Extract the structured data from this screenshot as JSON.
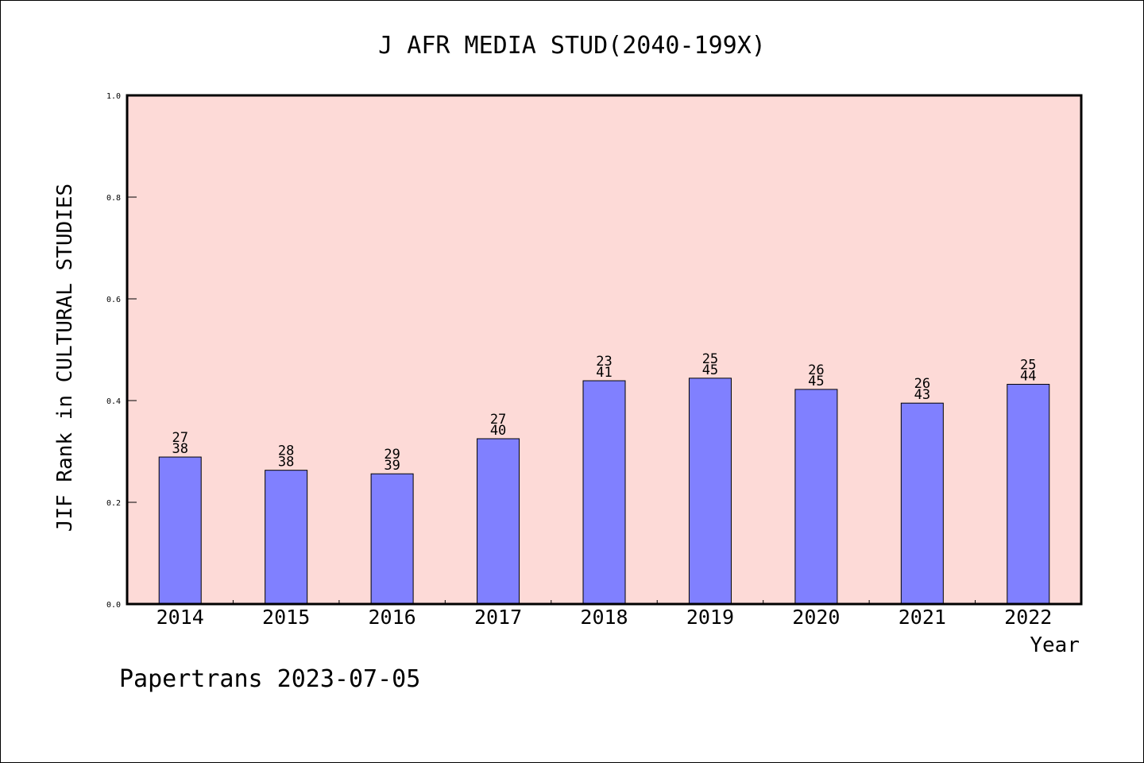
{
  "chart_data": {
    "type": "bar",
    "title": "J AFR MEDIA STUD(2040-199X)",
    "xlabel": "Year",
    "ylabel": "JIF Rank in CULTURAL STUDIES",
    "ylim": [
      0.0,
      1.0
    ],
    "yticks": [
      "0.0",
      "0.2",
      "0.4",
      "0.6",
      "0.8",
      "1.0"
    ],
    "categories": [
      "2014",
      "2015",
      "2016",
      "2017",
      "2018",
      "2019",
      "2020",
      "2021",
      "2022"
    ],
    "values": [
      0.289,
      0.263,
      0.256,
      0.325,
      0.439,
      0.444,
      0.422,
      0.395,
      0.432
    ],
    "label_top": [
      "27",
      "28",
      "29",
      "27",
      "23",
      "25",
      "26",
      "26",
      "25"
    ],
    "label_bottom": [
      "38",
      "38",
      "39",
      "40",
      "41",
      "45",
      "45",
      "43",
      "44"
    ],
    "colors": {
      "bar": "#8080ff",
      "plot_bg": "#fddad7"
    },
    "grid": false,
    "legend": "none"
  },
  "footer": "Papertrans 2023-07-05"
}
